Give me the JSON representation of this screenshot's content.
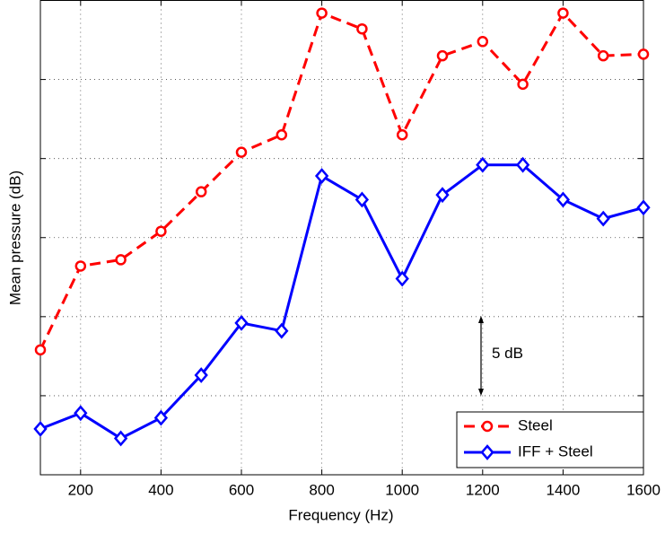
{
  "chart_data": {
    "type": "line",
    "x_label": "Frequency (Hz)",
    "y_label": "Mean pressure (dB)",
    "annotation": "5 dB",
    "x": [
      100,
      200,
      300,
      400,
      500,
      600,
      700,
      800,
      900,
      1000,
      1100,
      1200,
      1300,
      1400,
      1500,
      1600
    ],
    "series": [
      {
        "name": "Steel",
        "color": "#ff0000",
        "dash": true,
        "marker": "circle",
        "values": [
          7.9,
          13.2,
          13.6,
          15.4,
          17.9,
          20.4,
          21.5,
          29.2,
          28.2,
          21.5,
          26.5,
          27.4,
          24.7,
          29.2,
          26.5,
          26.6
        ]
      },
      {
        "name": "IFF + Steel",
        "color": "#0000ff",
        "dash": false,
        "marker": "diamond",
        "values": [
          2.9,
          3.9,
          2.3,
          3.6,
          6.3,
          9.6,
          9.1,
          18.9,
          17.4,
          12.4,
          17.7,
          19.6,
          19.6,
          17.4,
          16.2,
          16.9
        ]
      }
    ],
    "xlim": [
      100,
      1600
    ],
    "xticks": [
      200,
      400,
      600,
      800,
      1000,
      1200,
      1400,
      1600
    ],
    "ylim": [
      0,
      30
    ],
    "yticks": [
      0,
      5,
      10,
      15,
      20,
      25,
      30
    ],
    "grid": true,
    "legend": "lower right"
  }
}
